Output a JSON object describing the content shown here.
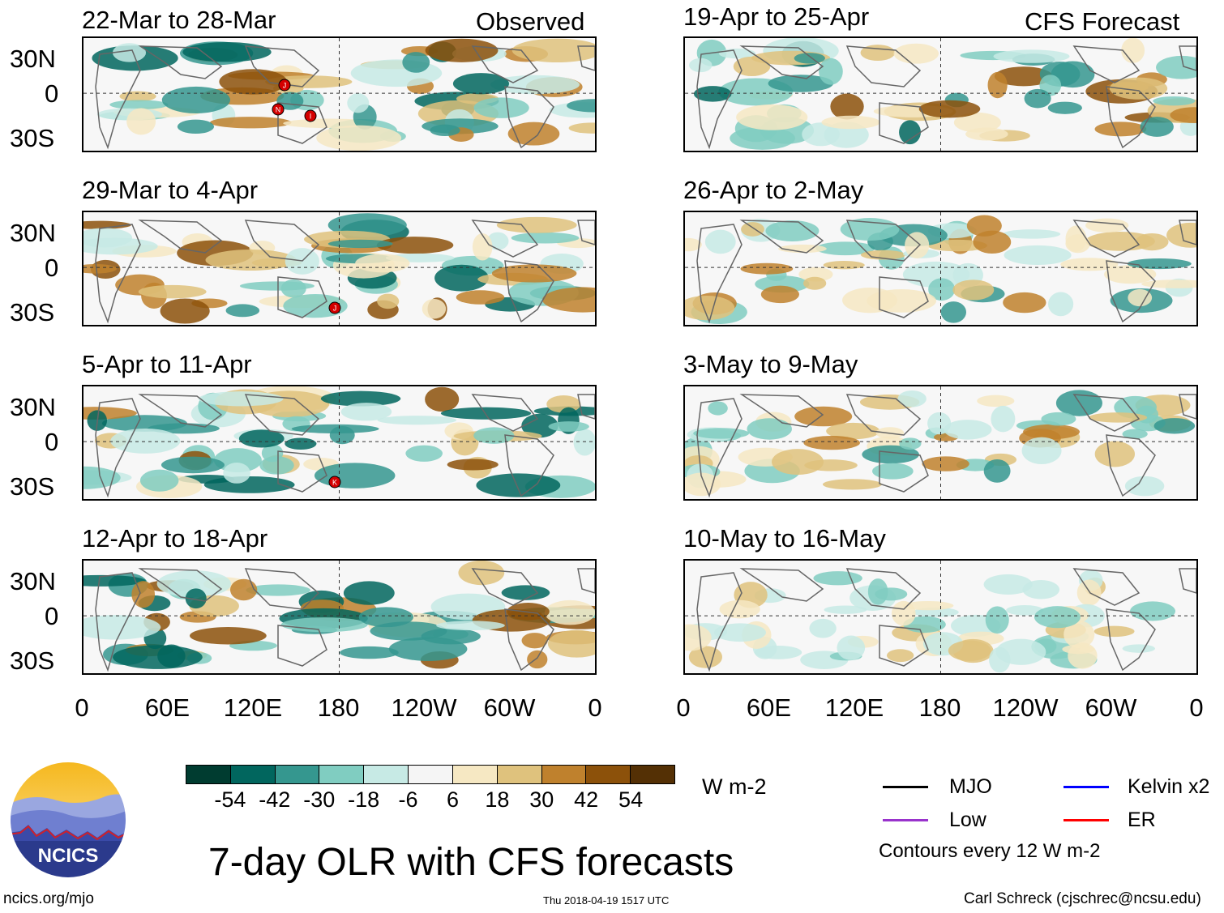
{
  "left_column_tag": "Observed",
  "right_column_tag": "CFS Forecast",
  "panels": [
    {
      "title": "22-Mar to 28-Mar",
      "column": "observed",
      "storms": [
        "J",
        "N",
        "I"
      ]
    },
    {
      "title": "29-Mar to 4-Apr",
      "column": "observed",
      "storms": [
        "J"
      ]
    },
    {
      "title": "5-Apr to 11-Apr",
      "column": "observed",
      "storms": [
        "K"
      ]
    },
    {
      "title": "12-Apr to 18-Apr",
      "column": "observed",
      "storms": []
    },
    {
      "title": "19-Apr to 25-Apr",
      "column": "forecast",
      "storms": []
    },
    {
      "title": "26-Apr to 2-May",
      "column": "forecast",
      "storms": []
    },
    {
      "title": "3-May to 9-May",
      "column": "forecast",
      "storms": []
    },
    {
      "title": "10-May to 16-May",
      "column": "forecast",
      "storms": []
    }
  ],
  "lat_labels": [
    "30N",
    "0",
    "30S"
  ],
  "lon_labels": [
    "0",
    "60E",
    "120E",
    "180",
    "120W",
    "60W",
    "0"
  ],
  "colorbar": {
    "colors": [
      "#003c30",
      "#01665e",
      "#35978f",
      "#80cdc1",
      "#c7eae5",
      "#f5f5f5",
      "#f6e8c3",
      "#dfc27d",
      "#bf812d",
      "#8c510a",
      "#543005"
    ],
    "labels": [
      "-54",
      "-42",
      "-30",
      "-18",
      "-6",
      "6",
      "18",
      "30",
      "42",
      "54"
    ],
    "units": "W m-2"
  },
  "legend": [
    {
      "label": "MJO",
      "color": "#000000"
    },
    {
      "label": "Kelvin x2",
      "color": "#0000ff"
    },
    {
      "label": "Low",
      "color": "#9933cc"
    },
    {
      "label": "ER",
      "color": "#ff0000"
    }
  ],
  "legend_note": "Contours every 12 W m-2",
  "logo_text": "NCICS",
  "main_title": "7-day OLR with CFS forecasts",
  "footer": {
    "left": "ncics.org/mjo",
    "center": "Thu 2018-04-19 1517 UTC",
    "right": "Carl Schreck (cjschrec@ncsu.edu)"
  }
}
